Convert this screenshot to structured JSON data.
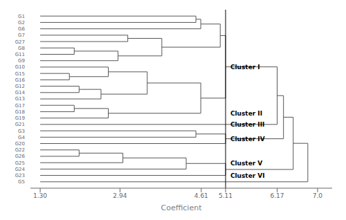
{
  "chart_data": {
    "type": "dendrogram",
    "xlabel": "Coefficient",
    "xlim": [
      1.1,
      7.3
    ],
    "xticks": [
      {
        "value": 1.3,
        "label": "1.30"
      },
      2.94,
      4.61,
      5.11,
      6.17,
      {
        "value": 7.0,
        "label": "7.0"
      }
    ],
    "color": "#555555",
    "leaf_value": 1.3,
    "reference_line": 5.11,
    "annotation_x": 5.18,
    "tree": {
      "height": 6.8,
      "children": [
        {
          "height": 6.5,
          "children": [
            {
              "height": 6.3,
              "children": [
                {
                  "height": 6.17,
                  "children": [
                    {
                      "height": 5.11,
                      "annotation": "Cluster I",
                      "children": [
                        {
                          "height": 5.0,
                          "children": [
                            {
                              "height": 4.6,
                              "children": [
                                {
                                  "height": 4.5,
                                  "children": [
                                    {
                                      "label": "G1"
                                    },
                                    {
                                      "label": "G2"
                                    }
                                  ]
                                },
                                {
                                  "label": "G6"
                                }
                              ]
                            },
                            {
                              "height": 3.8,
                              "children": [
                                {
                                  "height": 3.1,
                                  "children": [
                                    {
                                      "label": "G7"
                                    },
                                    {
                                      "label": "G27"
                                    }
                                  ]
                                },
                                {
                                  "height": 2.9,
                                  "children": [
                                    {
                                      "height": 2.0,
                                      "children": [
                                        {
                                          "label": "G8"
                                        },
                                        {
                                          "label": "G11"
                                        }
                                      ]
                                    },
                                    {
                                      "label": "G9"
                                    }
                                  ]
                                }
                              ]
                            }
                          ]
                        },
                        {
                          "height": 4.6,
                          "children": [
                            {
                              "height": 3.5,
                              "children": [
                                {
                                  "height": 2.7,
                                  "children": [
                                    {
                                      "label": "G10"
                                    },
                                    {
                                      "height": 1.9,
                                      "children": [
                                        {
                                          "label": "G15"
                                        },
                                        {
                                          "label": "G16"
                                        }
                                      ]
                                    }
                                  ]
                                },
                                {
                                  "height": 2.55,
                                  "children": [
                                    {
                                      "height": 2.1,
                                      "children": [
                                        {
                                          "label": "G12"
                                        },
                                        {
                                          "label": "G14"
                                        }
                                      ]
                                    },
                                    {
                                      "label": "G13"
                                    }
                                  ]
                                }
                              ]
                            },
                            {
                              "height": 2.7,
                              "annotation": "Cluster II",
                              "children": [
                                {
                                  "height": 2.0,
                                  "children": [
                                    {
                                      "label": "G17"
                                    },
                                    {
                                      "label": "G18"
                                    }
                                  ]
                                },
                                {
                                  "label": "G19"
                                }
                              ]
                            }
                          ]
                        }
                      ]
                    },
                    {
                      "label": "G21",
                      "annotation": "Cluster III"
                    }
                  ]
                },
                {
                  "height": 5.11,
                  "annotation": "Cluster IV",
                  "children": [
                    {
                      "height": 4.5,
                      "children": [
                        {
                          "label": "G3"
                        },
                        {
                          "label": "G4"
                        }
                      ]
                    },
                    {
                      "label": "G20"
                    }
                  ]
                }
              ]
            },
            {
              "height": 5.11,
              "children": [
                {
                  "height": 4.3,
                  "annotation": "Cluster V",
                  "children": [
                    {
                      "height": 3.0,
                      "children": [
                        {
                          "height": 2.1,
                          "children": [
                            {
                              "label": "G22"
                            },
                            {
                              "label": "G26"
                            }
                          ]
                        },
                        {
                          "label": "G25"
                        }
                      ]
                    },
                    {
                      "label": "G24"
                    }
                  ]
                },
                {
                  "label": "G23",
                  "annotation": "Cluster VI"
                }
              ]
            }
          ]
        },
        {
          "label": "G5"
        }
      ]
    }
  }
}
